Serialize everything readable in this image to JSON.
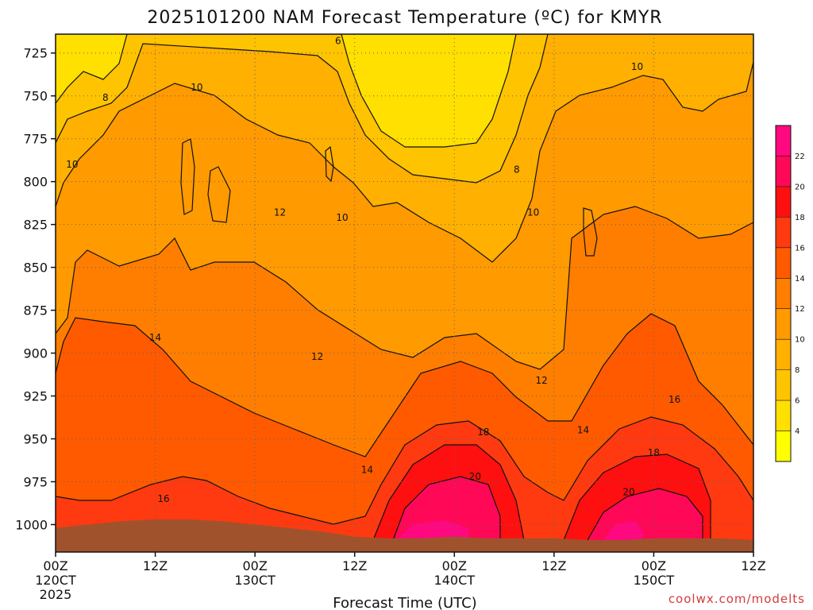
{
  "chart_data": {
    "type": "heatmap",
    "title": "2025101200 NAM Forecast Temperature (ºC) for KMYR",
    "xlabel": "Forecast Time (UTC)",
    "ylabel": "",
    "credit": "coolwx.com/modelts",
    "x_ticks": [
      {
        "hours": 0,
        "label": "00Z",
        "date": "120CT",
        "year": "2025"
      },
      {
        "hours": 12,
        "label": "12Z",
        "date": "",
        "year": ""
      },
      {
        "hours": 24,
        "label": "00Z",
        "date": "130CT",
        "year": ""
      },
      {
        "hours": 36,
        "label": "12Z",
        "date": "",
        "year": ""
      },
      {
        "hours": 48,
        "label": "00Z",
        "date": "140CT",
        "year": ""
      },
      {
        "hours": 60,
        "label": "12Z",
        "date": "",
        "year": ""
      },
      {
        "hours": 72,
        "label": "00Z",
        "date": "150CT",
        "year": ""
      },
      {
        "hours": 84,
        "label": "12Z",
        "date": "",
        "year": ""
      }
    ],
    "xlim": [
      0,
      84
    ],
    "y_ticks": [
      725,
      750,
      775,
      800,
      825,
      850,
      875,
      900,
      925,
      950,
      975,
      1000
    ],
    "ylim": [
      1016,
      714
    ],
    "yscale": "pressure (hPa), increasing downward",
    "grid": true,
    "colorbar": {
      "placement": "right",
      "levels": [
        4,
        6,
        8,
        10,
        12,
        14,
        16,
        18,
        20,
        22
      ],
      "colors": [
        "#ffff00",
        "#ffe000",
        "#ffc400",
        "#ffb000",
        "#ff9a00",
        "#ff7e00",
        "#ff5a00",
        "#ff3a10",
        "#ff1010",
        "#ff0858",
        "#ff0880"
      ]
    },
    "contour_labels": [
      {
        "value": "6",
        "hours": 34.0,
        "pressure": 718
      },
      {
        "value": "10",
        "hours": 70.0,
        "pressure": 733
      },
      {
        "value": "10",
        "hours": 17.0,
        "pressure": 745
      },
      {
        "value": "8",
        "hours": 6.0,
        "pressure": 751
      },
      {
        "value": "10",
        "hours": 2.0,
        "pressure": 790
      },
      {
        "value": "8",
        "hours": 55.5,
        "pressure": 793
      },
      {
        "value": "12",
        "hours": 27.0,
        "pressure": 818
      },
      {
        "value": "10",
        "hours": 34.5,
        "pressure": 821
      },
      {
        "value": "10",
        "hours": 57.5,
        "pressure": 818
      },
      {
        "value": "14",
        "hours": 12.0,
        "pressure": 891
      },
      {
        "value": "12",
        "hours": 31.5,
        "pressure": 902
      },
      {
        "value": "12",
        "hours": 58.5,
        "pressure": 916
      },
      {
        "value": "14",
        "hours": 63.5,
        "pressure": 945
      },
      {
        "value": "16",
        "hours": 74.5,
        "pressure": 927
      },
      {
        "value": "18",
        "hours": 51.5,
        "pressure": 946
      },
      {
        "value": "18",
        "hours": 72.0,
        "pressure": 958
      },
      {
        "value": "14",
        "hours": 37.5,
        "pressure": 968
      },
      {
        "value": "20",
        "hours": 50.5,
        "pressure": 972
      },
      {
        "value": "20",
        "hours": 69.0,
        "pressure": 981
      },
      {
        "value": "16",
        "hours": 13.0,
        "pressure": 985
      }
    ],
    "terrain_color": "#a0522d",
    "terrain_surface": [
      {
        "hours": 0,
        "pressure": 1002
      },
      {
        "hours": 4,
        "pressure": 1000
      },
      {
        "hours": 8,
        "pressure": 998
      },
      {
        "hours": 12,
        "pressure": 997
      },
      {
        "hours": 16,
        "pressure": 997
      },
      {
        "hours": 20,
        "pressure": 998
      },
      {
        "hours": 24,
        "pressure": 1000
      },
      {
        "hours": 28,
        "pressure": 1002
      },
      {
        "hours": 32,
        "pressure": 1004
      },
      {
        "hours": 36,
        "pressure": 1007
      },
      {
        "hours": 40,
        "pressure": 1008
      },
      {
        "hours": 44,
        "pressure": 1008
      },
      {
        "hours": 48,
        "pressure": 1007
      },
      {
        "hours": 52,
        "pressure": 1008
      },
      {
        "hours": 56,
        "pressure": 1008
      },
      {
        "hours": 60,
        "pressure": 1008
      },
      {
        "hours": 64,
        "pressure": 1009
      },
      {
        "hours": 68,
        "pressure": 1009
      },
      {
        "hours": 72,
        "pressure": 1008
      },
      {
        "hours": 76,
        "pressure": 1008
      },
      {
        "hours": 80,
        "pressure": 1008
      },
      {
        "hours": 84,
        "pressure": 1009
      }
    ]
  }
}
